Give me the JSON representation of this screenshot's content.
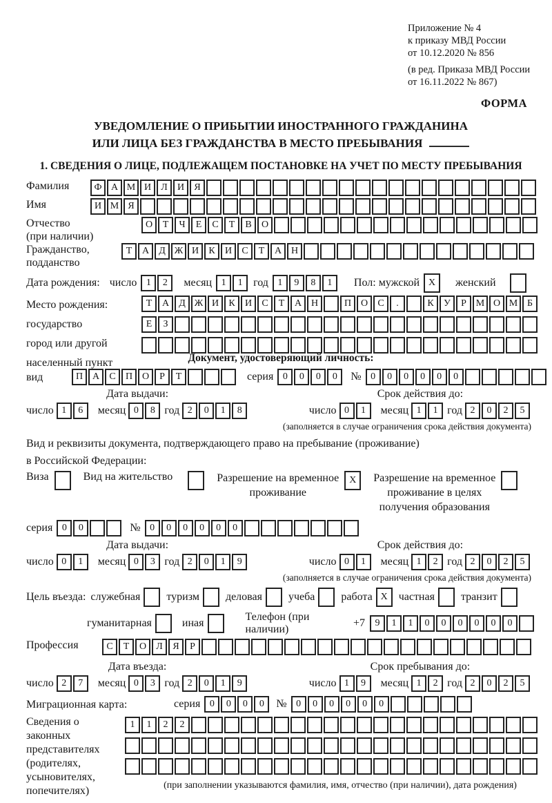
{
  "page": {
    "appendix": [
      "Приложение № 4",
      "к приказу МВД России",
      "от 10.12.2020 № 856"
    ],
    "edition": [
      "(в ред. Приказа МВД России",
      "от 16.11.2022 № 867)"
    ],
    "forma": "ФОРМА",
    "title1": "УВЕДОМЛЕНИЕ О ПРИБЫТИИ ИНОСТРАННОГО ГРАЖДАНИНА",
    "title2": "ИЛИ ЛИЦА БЕЗ ГРАЖДАНСТВА В МЕСТО ПРЕБЫВАНИЯ",
    "section1_heading": "1. СВЕДЕНИЯ О ЛИЦЕ, ПОДЛЕЖАЩЕМ ПОСТАНОВКЕ НА УЧЕТ ПО МЕСТУ ПРЕБЫВАНИЯ"
  },
  "person": {
    "surname": {
      "label": "Фамилия",
      "cells": {
        "chars": "ФАМИЛИЯ",
        "total": 27
      }
    },
    "name": {
      "label": "Имя",
      "cells": {
        "chars": "ИМЯ",
        "total": 27
      }
    },
    "patronymic": {
      "label1": "Отчество",
      "label2": "(при наличии)",
      "cells": {
        "chars": "ОТЧЕСТВО",
        "total": 24
      }
    },
    "citizenship": {
      "label1": "Гражданство,",
      "label2": "подданство",
      "cells": {
        "chars": "ТАДЖИКИСТАН",
        "total": 25
      }
    },
    "birth_date": {
      "label": "Дата рождения:",
      "day_label": "число",
      "day": {
        "chars": "12",
        "total": 2
      },
      "month_label": "месяц",
      "month": {
        "chars": "11",
        "total": 2
      },
      "year_label": "год",
      "year": {
        "chars": "1981",
        "total": 4
      },
      "sex_label": "Пол: мужской",
      "male": {
        "chars": "X",
        "total": 1
      },
      "female_label": "женский",
      "female": {
        "chars": "",
        "total": 1
      }
    },
    "birth_place": {
      "labels": [
        "Место рождения:",
        "государство",
        "город или другой",
        "населенный пункт"
      ],
      "rows": [
        {
          "chars": "ТАДЖИКИСТАН ПОС. КУРМОМБ",
          "total": 24
        },
        {
          "chars": "ЕЗ",
          "total": 24
        },
        {
          "chars": "",
          "total": 24
        }
      ]
    }
  },
  "identity_doc": {
    "heading": "Документ, удостоверяющий личность:",
    "kind_label": "вид",
    "kind": {
      "chars": "ПАСПОРТ",
      "total": 10
    },
    "series_label": "серия",
    "series": {
      "chars": "0000",
      "total": 4
    },
    "number_label": "№",
    "number": {
      "chars": "000000",
      "total": 11
    },
    "issue": {
      "heading": "Дата выдачи:",
      "day_label": "число",
      "day": {
        "chars": "16",
        "total": 2
      },
      "month_label": "месяц",
      "month": {
        "chars": "08",
        "total": 2
      },
      "year_label": "год",
      "year": {
        "chars": "2018",
        "total": 4
      }
    },
    "valid": {
      "heading": "Срок действия до:",
      "day_label": "число",
      "day": {
        "chars": "01",
        "total": 2
      },
      "month_label": "месяц",
      "month": {
        "chars": "11",
        "total": 2
      },
      "year_label": "год",
      "year": {
        "chars": "2025",
        "total": 4
      }
    },
    "note": "(заполняется в случае ограничения срока действия документа)"
  },
  "residence_doc": {
    "intro1": "Вид и реквизиты документа, подтверждающего право на пребывание (проживание)",
    "intro2": "в Российской Федерации:",
    "visa_label": "Виза",
    "visa": {
      "chars": "",
      "total": 1
    },
    "permit_label": "Вид на жительство",
    "permit": {
      "chars": "",
      "total": 1
    },
    "rvp_lines": [
      "Разрешение на временное",
      "проживание"
    ],
    "rvp": {
      "chars": "X",
      "total": 1
    },
    "rvp_edu_lines": [
      "Разрешение на временное",
      "проживание в целях",
      "получения образования"
    ],
    "rvp_edu": {
      "chars": "",
      "total": 1
    },
    "series_label": "серия",
    "series": {
      "chars": "00",
      "total": 4
    },
    "number_label": "№",
    "number": {
      "chars": "000000",
      "total": 13
    },
    "issue": {
      "heading": "Дата выдачи:",
      "day_label": "число",
      "day": {
        "chars": "01",
        "total": 2
      },
      "month_label": "месяц",
      "month": {
        "chars": "03",
        "total": 2
      },
      "year_label": "год",
      "year": {
        "chars": "2019",
        "total": 4
      }
    },
    "valid": {
      "heading": "Срок действия до:",
      "day_label": "число",
      "day": {
        "chars": "01",
        "total": 2
      },
      "month_label": "месяц",
      "month": {
        "chars": "12",
        "total": 2
      },
      "year_label": "год",
      "year": {
        "chars": "2025",
        "total": 4
      }
    },
    "note": "(заполняется в случае ограничения срока действия документа)"
  },
  "purpose": {
    "label": "Цель въезда:",
    "row1": [
      {
        "label": "служебная",
        "box": {
          "chars": "",
          "total": 1
        }
      },
      {
        "label": "туризм",
        "box": {
          "chars": "",
          "total": 1
        }
      },
      {
        "label": "деловая",
        "box": {
          "chars": "",
          "total": 1
        }
      },
      {
        "label": "учеба",
        "box": {
          "chars": "",
          "total": 1
        }
      },
      {
        "label": "работа",
        "box": {
          "chars": "X",
          "total": 1
        }
      },
      {
        "label": "частная",
        "box": {
          "chars": "",
          "total": 1
        }
      },
      {
        "label": "транзит",
        "box": {
          "chars": "",
          "total": 1
        }
      }
    ],
    "row2": [
      {
        "label": "гуманитарная",
        "box": {
          "chars": "",
          "total": 1
        }
      },
      {
        "label": "иная",
        "box": {
          "chars": "",
          "total": 1
        }
      }
    ],
    "phone_label": "Телефон (при наличии)",
    "phone_prefix": "+7",
    "phone": {
      "chars": "911000000",
      "total": 10
    }
  },
  "profession": {
    "label": "Профессия",
    "cells": {
      "chars": "СТОЛЯР",
      "total": 26
    }
  },
  "entry": {
    "arrival": {
      "heading": "Дата въезда:",
      "day_label": "число",
      "day": {
        "chars": "27",
        "total": 2
      },
      "month_label": "месяц",
      "month": {
        "chars": "03",
        "total": 2
      },
      "year_label": "год",
      "year": {
        "chars": "2019",
        "total": 4
      }
    },
    "stay": {
      "heading": "Срок пребывания до:",
      "day_label": "число",
      "day": {
        "chars": "19",
        "total": 2
      },
      "month_label": "месяц",
      "month": {
        "chars": "12",
        "total": 2
      },
      "year_label": "год",
      "year": {
        "chars": "2025",
        "total": 4
      }
    }
  },
  "migration_card": {
    "label": "Миграционная карта:",
    "series_label": "серия",
    "series": {
      "chars": "0000",
      "total": 4
    },
    "number_label": "№",
    "number": {
      "chars": "000000",
      "total": 11
    }
  },
  "representatives": {
    "labels": [
      "Сведения о",
      "законных",
      "представителях",
      "(родителях,",
      "усыновителях,",
      "попечителях)"
    ],
    "rows": [
      {
        "chars": "1122",
        "total": 25
      },
      {
        "chars": "",
        "total": 25
      },
      {
        "chars": "",
        "total": 25
      }
    ],
    "note": "(при заполнении указываются фамилия, имя, отчество (при наличии), дата рождения)"
  }
}
